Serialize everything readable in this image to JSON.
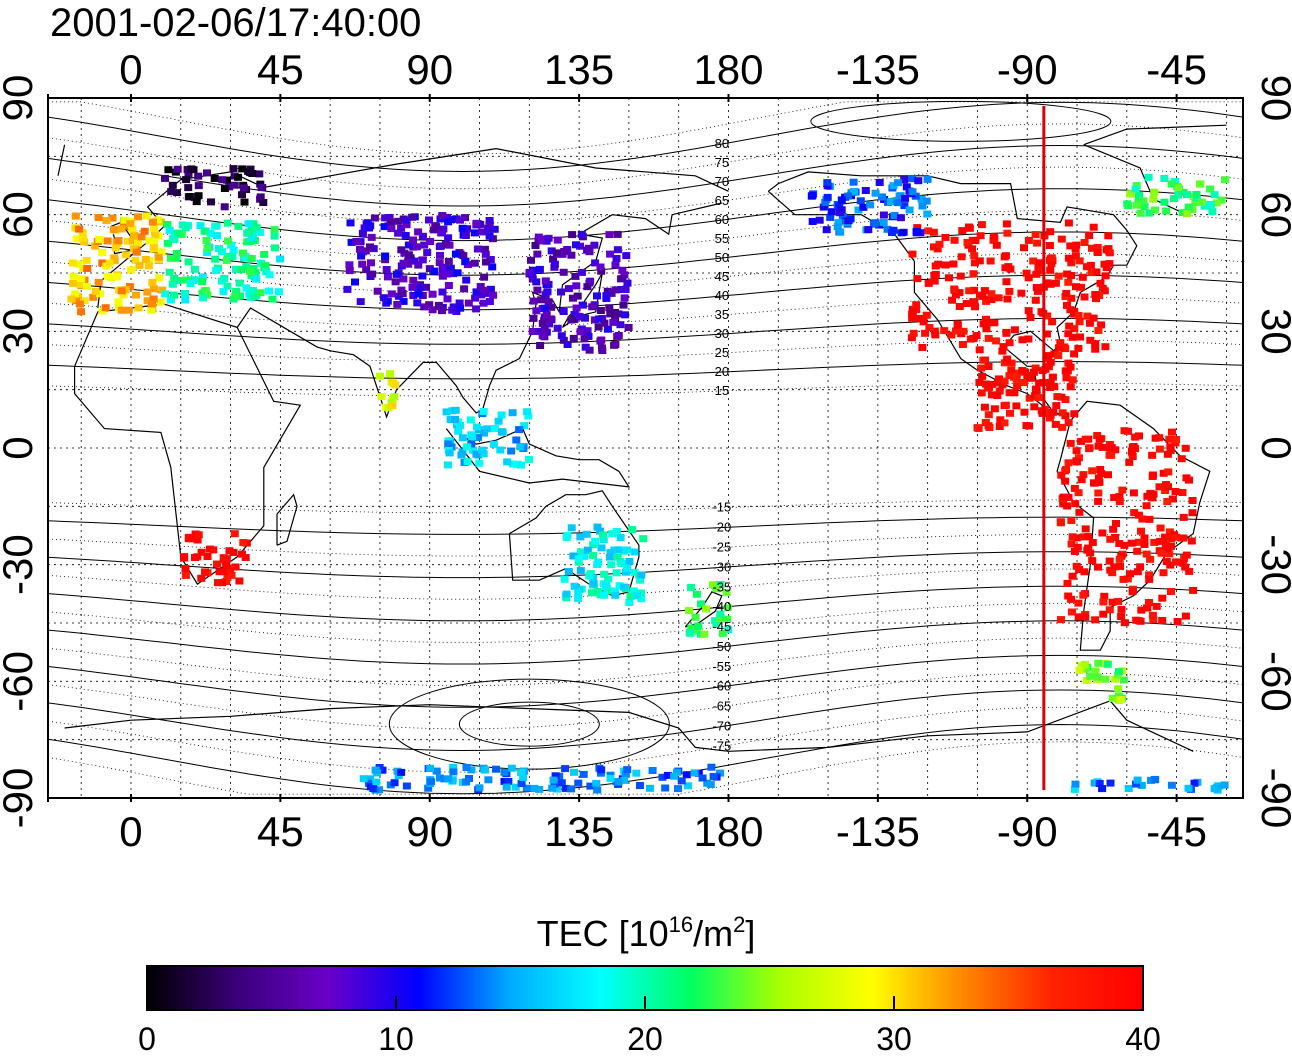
{
  "timestamp": "2001-02-06/17:40:00",
  "map": {
    "lon_ticks": [
      "0",
      "45",
      "90",
      "135",
      "180",
      "-135",
      "-90",
      "-45"
    ],
    "lat_ticks": [
      "90",
      "60",
      "30",
      "0",
      "-30",
      "-60",
      "-90"
    ],
    "mag_lat_labels": [
      "80",
      "75",
      "70",
      "65",
      "60",
      "55",
      "50",
      "45",
      "40",
      "35",
      "30",
      "25",
      "20",
      "15",
      "-15",
      "-20",
      "-25",
      "-30",
      "-35",
      "-40",
      "-45",
      "-50",
      "-55",
      "-60",
      "-65",
      "-70",
      "-75"
    ],
    "marker_line": {
      "lon": -85,
      "color": "#e00000"
    }
  },
  "colorbar": {
    "title_prefix": "TEC  [10",
    "title_sup1": "16",
    "title_mid": "/m",
    "title_sup2": "2",
    "title_suffix": "]",
    "ticks": [
      "0",
      "10",
      "20",
      "30",
      "40"
    ],
    "min": 0,
    "max": 40,
    "colors": [
      "#000000",
      "#3a007a",
      "#6a00c8",
      "#0000ff",
      "#00aaff",
      "#00ffff",
      "#00ff60",
      "#aaff00",
      "#ffff00",
      "#ff8800",
      "#ff2200",
      "#ff0000"
    ]
  },
  "tec_regions": [
    {
      "name": "north-america",
      "lon": [
        -125,
        -65
      ],
      "lat": [
        25,
        58
      ],
      "value": 40
    },
    {
      "name": "central-america",
      "lon": [
        -105,
        -75
      ],
      "lat": [
        5,
        25
      ],
      "value": 40
    },
    {
      "name": "south-america",
      "lon": [
        -80,
        -40
      ],
      "lat": [
        -45,
        5
      ],
      "value": 40
    },
    {
      "name": "europe-west",
      "lon": [
        -18,
        10
      ],
      "lat": [
        35,
        60
      ],
      "value": 31
    },
    {
      "name": "europe-east",
      "lon": [
        10,
        45
      ],
      "lat": [
        38,
        58
      ],
      "value": 20
    },
    {
      "name": "scandinavia",
      "lon": [
        10,
        40
      ],
      "lat": [
        62,
        72
      ],
      "value": 2
    },
    {
      "name": "central-asia",
      "lon": [
        65,
        110
      ],
      "lat": [
        35,
        60
      ],
      "value": 8
    },
    {
      "name": "east-asia",
      "lon": [
        120,
        150
      ],
      "lat": [
        25,
        55
      ],
      "value": 7
    },
    {
      "name": "south-africa",
      "lon": [
        15,
        35
      ],
      "lat": [
        -35,
        -22
      ],
      "value": 40
    },
    {
      "name": "australia-east",
      "lon": [
        130,
        155
      ],
      "lat": [
        -40,
        -20
      ],
      "value": 18
    },
    {
      "name": "new-zealand",
      "lon": [
        168,
        180
      ],
      "lat": [
        -48,
        -35
      ],
      "value": 22
    },
    {
      "name": "alaska-canada",
      "lon": [
        -155,
        -120
      ],
      "lat": [
        55,
        70
      ],
      "value": 12
    },
    {
      "name": "antarctic-strip",
      "lon": [
        70,
        180
      ],
      "lat": [
        -88,
        -82
      ],
      "value": 14
    },
    {
      "name": "antarctic-strip-east",
      "lon": [
        -80,
        -30
      ],
      "lat": [
        -88,
        -85
      ],
      "value": 14
    },
    {
      "name": "south-india",
      "lon": [
        75,
        80
      ],
      "lat": [
        10,
        20
      ],
      "value": 28
    },
    {
      "name": "indonesia",
      "lon": [
        95,
        120
      ],
      "lat": [
        -5,
        10
      ],
      "value": 16
    },
    {
      "name": "patagonia",
      "lon": [
        -75,
        -60
      ],
      "lat": [
        -65,
        -55
      ],
      "value": 24
    },
    {
      "name": "greenland-south",
      "lon": [
        -60,
        -30
      ],
      "lat": [
        60,
        70
      ],
      "value": 22
    }
  ]
}
